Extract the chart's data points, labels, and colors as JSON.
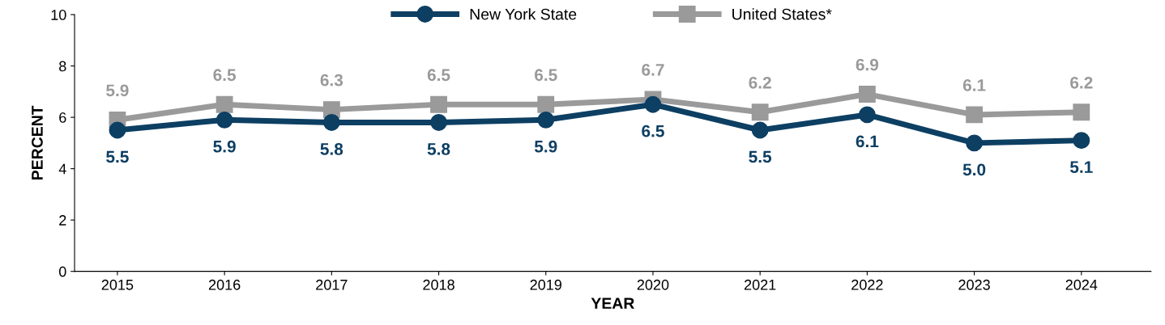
{
  "chart_data": {
    "type": "line",
    "xlabel": "YEAR",
    "ylabel": "PERCENT",
    "categories": [
      "2015",
      "2016",
      "2017",
      "2018",
      "2019",
      "2020",
      "2021",
      "2022",
      "2023",
      "2024"
    ],
    "series": [
      {
        "name": "New York State",
        "color": "#0d3f63",
        "marker": "circle",
        "values": [
          5.5,
          5.9,
          5.8,
          5.8,
          5.9,
          6.5,
          5.5,
          6.1,
          5.0,
          5.1
        ],
        "value_labels": [
          "5.5",
          "5.9",
          "5.8",
          "5.8",
          "5.9",
          "6.5",
          "5.5",
          "6.1",
          "5.0",
          "5.1"
        ]
      },
      {
        "name": "United States*",
        "color": "#9a9a9b",
        "marker": "square",
        "values": [
          5.9,
          6.5,
          6.3,
          6.5,
          6.5,
          6.7,
          6.2,
          6.9,
          6.1,
          6.2
        ],
        "value_labels": [
          "5.9",
          "6.5",
          "6.3",
          "6.5",
          "6.5",
          "6.7",
          "6.2",
          "6.9",
          "6.1",
          "6.2"
        ]
      }
    ],
    "ylim": [
      0,
      10
    ],
    "yticks": [
      0,
      2,
      4,
      6,
      8,
      10
    ],
    "grid": false,
    "legend": "top",
    "line_style": "solid"
  }
}
